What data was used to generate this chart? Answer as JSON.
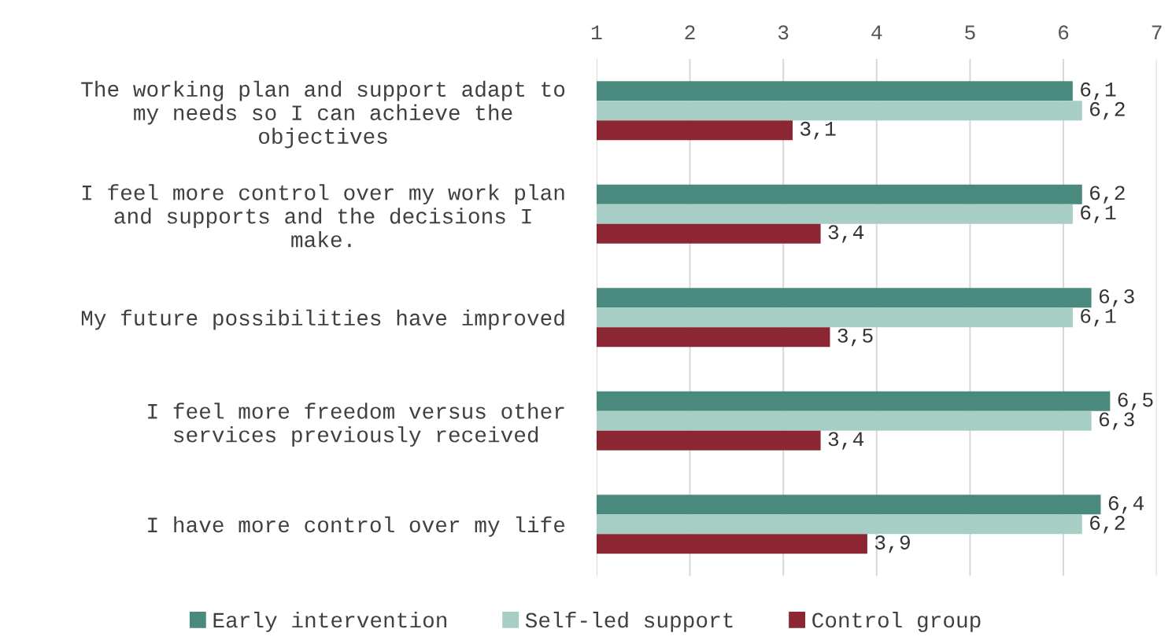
{
  "chart_data": {
    "type": "bar",
    "orientation": "horizontal",
    "categories": [
      "The working plan and support adapt to\nmy needs so I can achieve the\nobjectives",
      "I feel more control over my work plan\nand supports and the decisions I\nmake.",
      "My future possibilities have improved",
      "I feel more freedom versus other\nservices previously received",
      "I have more control over my life"
    ],
    "series": [
      {
        "name": "Early intervention",
        "color": "#4a8a7e",
        "values": [
          6.1,
          6.2,
          6.3,
          6.5,
          6.4
        ],
        "value_labels": [
          "6,1",
          "6,2",
          "6,3",
          "6,5",
          "6,4"
        ]
      },
      {
        "name": "Self-led support",
        "color": "#a6cec5",
        "values": [
          6.2,
          6.1,
          6.1,
          6.3,
          6.2
        ],
        "value_labels": [
          "6,2",
          "6,1",
          "6,1",
          "6,3",
          "6,2"
        ]
      },
      {
        "name": "Control group",
        "color": "#8b2632",
        "values": [
          3.1,
          3.4,
          3.5,
          3.4,
          3.9
        ],
        "value_labels": [
          "3,1",
          "3,4",
          "3,5",
          "3,4",
          "3,9"
        ]
      }
    ],
    "xlim": [
      1,
      7
    ],
    "xticks": [
      1,
      2,
      3,
      4,
      5,
      6,
      7
    ],
    "grid": "x",
    "legend": "bottom"
  }
}
